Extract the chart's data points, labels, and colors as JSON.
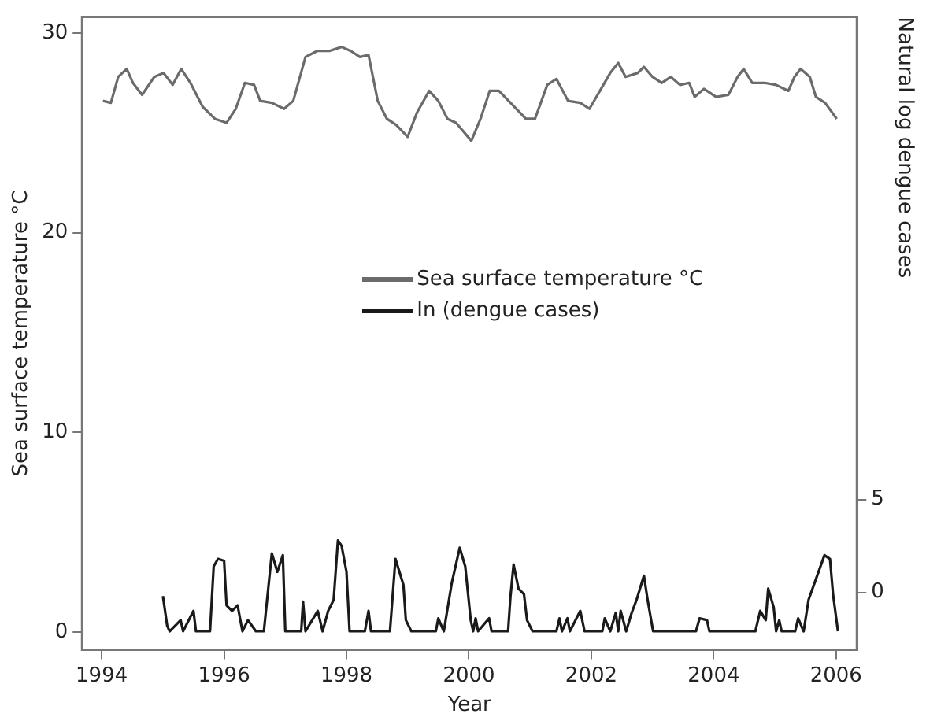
{
  "chart_data": {
    "type": "line",
    "xlabel": "Year",
    "ylabel": "Sea surface temperature °C",
    "y2label": "Natural log dengue cases",
    "xlim": [
      1993.68,
      2006.34
    ],
    "xticks": [
      1994,
      1996,
      1998,
      2000,
      2002,
      2004,
      2006
    ],
    "ylim": [
      -0.9,
      30.8
    ],
    "yticks": [
      0,
      10,
      20,
      30
    ],
    "y2lim": [
      -3.1,
      31
    ],
    "y2ticks": [
      0,
      5
    ],
    "grid": false,
    "legend": "center",
    "marker": "none",
    "line_style": "solid",
    "series": [
      {
        "name": "Sea surface temperature °C",
        "color": "#6b6b6b",
        "x": [
          1994.02,
          1994.15,
          1994.27,
          1994.41,
          1994.51,
          1994.66,
          1994.86,
          1995.01,
          1995.16,
          1995.3,
          1995.45,
          1995.65,
          1995.85,
          1996.04,
          1996.19,
          1996.34,
          1996.49,
          1996.59,
          1996.78,
          1996.98,
          1997.13,
          1997.33,
          1997.52,
          1997.72,
          1997.92,
          1998.07,
          1998.22,
          1998.36,
          1998.51,
          1998.66,
          1998.81,
          1999.0,
          1999.15,
          1999.35,
          1999.5,
          1999.65,
          1999.79,
          2000.04,
          2000.19,
          2000.34,
          2000.49,
          2000.68,
          2000.93,
          2001.08,
          2001.28,
          2001.43,
          2001.62,
          2001.82,
          2001.97,
          2002.16,
          2002.31,
          2002.44,
          2002.56,
          2002.76,
          2002.86,
          2003.0,
          2003.15,
          2003.3,
          2003.45,
          2003.6,
          2003.69,
          2003.84,
          2004.04,
          2004.24,
          2004.39,
          2004.49,
          2004.63,
          2004.83,
          2005.02,
          2005.22,
          2005.32,
          2005.42,
          2005.57,
          2005.67,
          2005.82,
          2006.01
        ],
        "values": [
          26.6,
          26.5,
          27.8,
          28.2,
          27.5,
          26.9,
          27.8,
          28.0,
          27.4,
          28.2,
          27.5,
          26.3,
          25.7,
          25.5,
          26.2,
          27.5,
          27.4,
          26.6,
          26.5,
          26.2,
          26.6,
          28.8,
          29.1,
          29.1,
          29.3,
          29.1,
          28.8,
          28.9,
          26.6,
          25.7,
          25.4,
          24.8,
          26.0,
          27.1,
          26.6,
          25.7,
          25.5,
          24.6,
          25.7,
          27.1,
          27.1,
          26.5,
          25.7,
          25.7,
          27.4,
          27.7,
          26.6,
          26.5,
          26.2,
          27.2,
          28.0,
          28.5,
          27.8,
          28.0,
          28.3,
          27.8,
          27.5,
          27.8,
          27.4,
          27.5,
          26.8,
          27.2,
          26.8,
          26.9,
          27.8,
          28.2,
          27.5,
          27.5,
          27.4,
          27.1,
          27.8,
          28.2,
          27.8,
          26.8,
          26.5,
          25.7
        ]
      },
      {
        "name": "In (dengue cases)",
        "color": "#1a1a1a",
        "axis": "y2",
        "x": [
          1995.0,
          1995.07,
          1995.11,
          1995.29,
          1995.33,
          1995.5,
          1995.54,
          1995.77,
          1995.83,
          1995.9,
          1996.0,
          1996.04,
          1996.13,
          1996.22,
          1996.3,
          1996.39,
          1996.52,
          1996.65,
          1996.78,
          1996.87,
          1996.96,
          1997.0,
          1997.26,
          1997.29,
          1997.33,
          1997.53,
          1997.61,
          1997.7,
          1997.79,
          1997.86,
          1997.92,
          1998.0,
          1998.05,
          1998.3,
          1998.36,
          1998.4,
          1998.71,
          1998.8,
          1998.93,
          1998.97,
          1999.06,
          1999.46,
          1999.5,
          1999.59,
          1999.72,
          1999.85,
          1999.94,
          2000.03,
          2000.07,
          2000.11,
          2000.15,
          2000.33,
          2000.37,
          2000.64,
          2000.68,
          2000.73,
          2000.81,
          2000.9,
          2000.95,
          2001.04,
          2001.43,
          2001.48,
          2001.52,
          2001.61,
          2001.65,
          2001.82,
          2001.89,
          2002.18,
          2002.22,
          2002.31,
          2002.4,
          2002.44,
          2002.48,
          2002.57,
          2002.66,
          2002.74,
          2002.86,
          2002.92,
          2003.01,
          2003.71,
          2003.77,
          2003.89,
          2003.93,
          2004.68,
          2004.76,
          2004.85,
          2004.89,
          2004.98,
          2005.02,
          2005.07,
          2005.11,
          2005.33,
          2005.38,
          2005.47,
          2005.55,
          2005.68,
          2005.81,
          2005.9,
          2005.95,
          2006.03
        ],
        "values": [
          -0.2,
          -1.8,
          -2.1,
          -1.5,
          -2.1,
          -1.0,
          -2.1,
          -2.1,
          1.4,
          1.8,
          1.7,
          -0.7,
          -1.0,
          -0.7,
          -2.1,
          -1.5,
          -2.1,
          -2.1,
          2.1,
          1.1,
          2.0,
          -2.1,
          -2.1,
          -0.5,
          -2.1,
          -1.0,
          -2.1,
          -1.0,
          -0.4,
          2.8,
          2.5,
          1.1,
          -2.1,
          -2.1,
          -1.0,
          -2.1,
          -2.1,
          1.8,
          0.4,
          -1.5,
          -2.1,
          -2.1,
          -1.4,
          -2.1,
          0.5,
          2.4,
          1.4,
          -1.5,
          -2.1,
          -1.4,
          -2.1,
          -1.4,
          -2.1,
          -2.1,
          -0.2,
          1.5,
          0.2,
          -0.1,
          -1.5,
          -2.1,
          -2.1,
          -1.4,
          -2.1,
          -1.4,
          -2.1,
          -1.0,
          -2.1,
          -2.1,
          -1.4,
          -2.1,
          -1.1,
          -2.1,
          -1.0,
          -2.1,
          -1.1,
          -0.4,
          0.9,
          -0.4,
          -2.1,
          -2.1,
          -1.4,
          -1.5,
          -2.1,
          -2.1,
          -1.0,
          -1.5,
          0.2,
          -0.8,
          -2.1,
          -1.5,
          -2.1,
          -2.1,
          -1.4,
          -2.1,
          -0.4,
          0.8,
          2.0,
          1.8,
          -0.1,
          -2.1
        ]
      }
    ]
  }
}
